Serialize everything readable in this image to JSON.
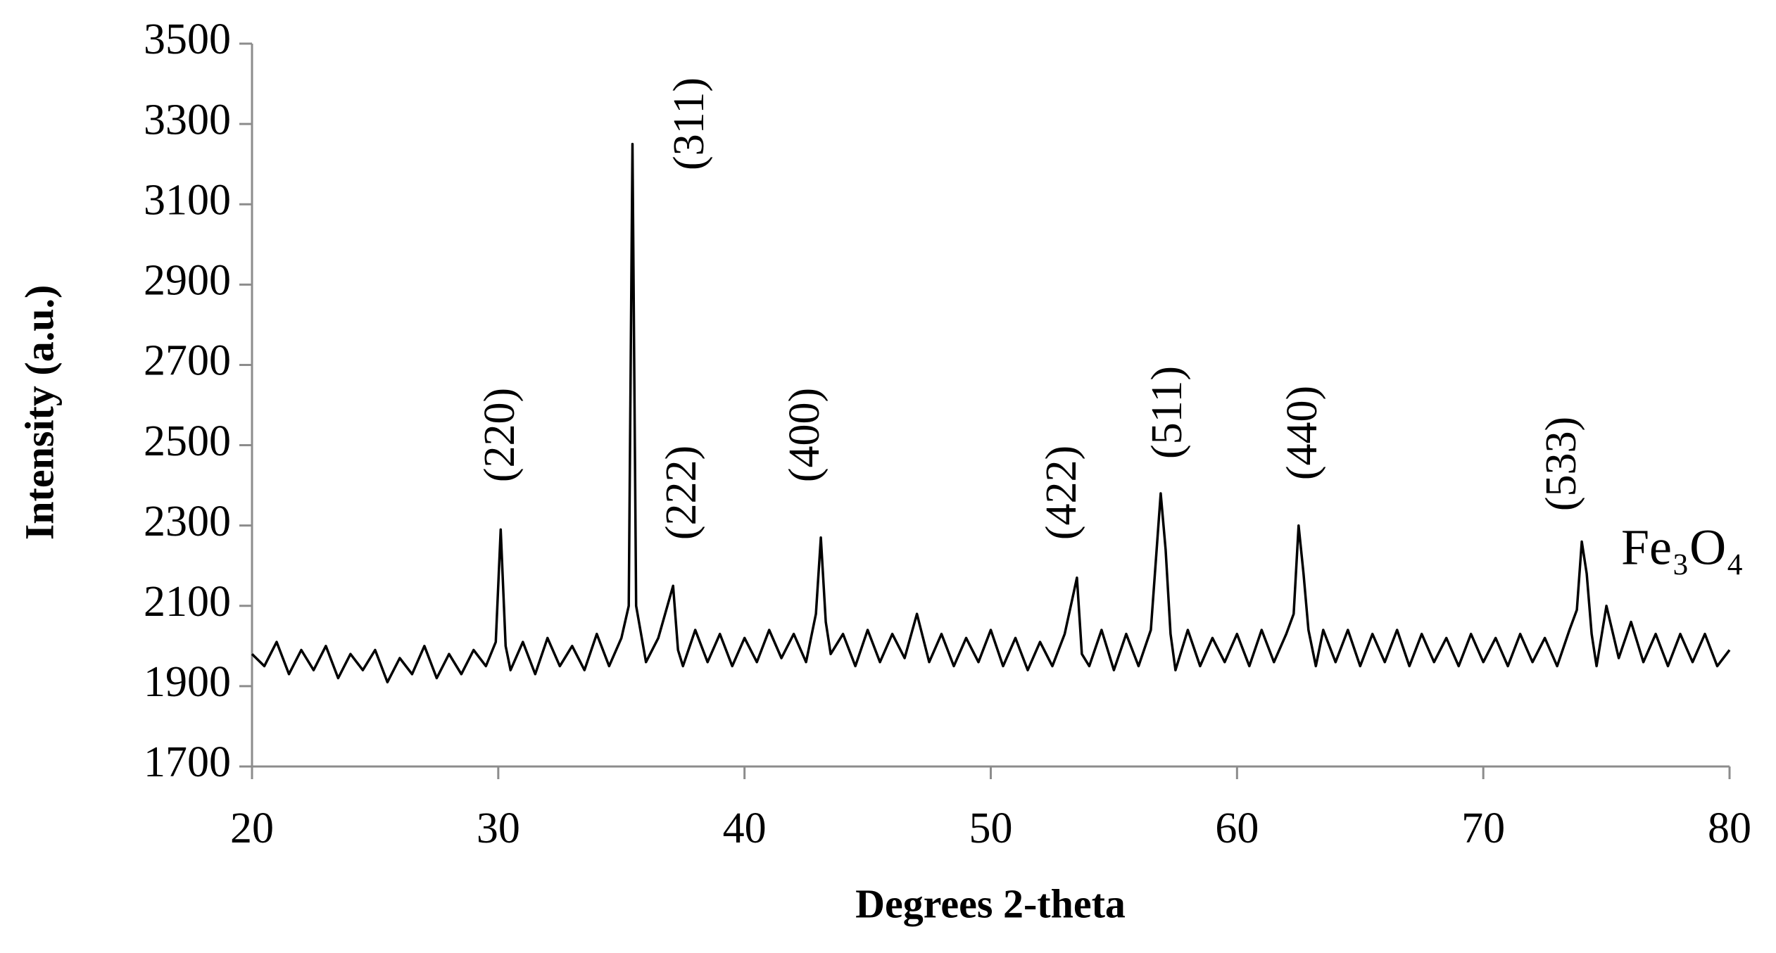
{
  "chart_data": {
    "type": "line",
    "xlabel": "Degrees 2-theta",
    "ylabel": "Intensity (a.u.)",
    "color": "#000000",
    "xlim": [
      20,
      80
    ],
    "xticks": [
      20,
      30,
      40,
      50,
      60,
      70,
      80
    ],
    "ylim": [
      1700,
      3500
    ],
    "yticks": [
      1700,
      1900,
      2100,
      2300,
      2500,
      2700,
      2900,
      3100,
      3300,
      3500
    ],
    "annotations": [
      "(220)",
      "(311)",
      "(222)",
      "(400)",
      "(422)",
      "(511)",
      "(440)",
      "(533)",
      "Fe₃O₄"
    ],
    "x": [
      20,
      20.5,
      21,
      21.5,
      22,
      22.5,
      23,
      23.5,
      24,
      24.5,
      25,
      25.5,
      26,
      26.5,
      27,
      27.5,
      28,
      28.5,
      29,
      29.5,
      29.9,
      30.1,
      30.3,
      30.5,
      31,
      31.5,
      32,
      32.5,
      33,
      33.5,
      34,
      34.5,
      35,
      35.3,
      35.45,
      35.6,
      35.8,
      36,
      36.5,
      37.1,
      37.3,
      37.5,
      38,
      38.5,
      39,
      39.5,
      40,
      40.5,
      41,
      41.5,
      42,
      42.5,
      42.9,
      43.1,
      43.3,
      43.5,
      44,
      44.5,
      45,
      45.5,
      46,
      46.5,
      47,
      47.5,
      48,
      48.5,
      49,
      49.5,
      50,
      50.5,
      51,
      51.5,
      52,
      52.5,
      53,
      53.5,
      53.7,
      54,
      54.5,
      55,
      55.5,
      56,
      56.5,
      56.9,
      57.1,
      57.3,
      57.5,
      58,
      58.5,
      59,
      59.5,
      60,
      60.5,
      61,
      61.5,
      62,
      62.3,
      62.5,
      62.7,
      62.9,
      63.2,
      63.5,
      64,
      64.5,
      65,
      65.5,
      66,
      66.5,
      67,
      67.5,
      68,
      68.5,
      69,
      69.5,
      70,
      70.5,
      71,
      71.5,
      72,
      72.5,
      73,
      73.5,
      73.8,
      74,
      74.2,
      74.4,
      74.6,
      75,
      75.5,
      76,
      76.5,
      77,
      77.5,
      78,
      78.5,
      79,
      79.5,
      80
    ],
    "values": [
      1980,
      1950,
      2010,
      1930,
      1990,
      1940,
      2000,
      1920,
      1980,
      1940,
      1990,
      1910,
      1970,
      1930,
      2000,
      1920,
      1980,
      1930,
      1990,
      1950,
      2010,
      2290,
      2000,
      1940,
      2010,
      1930,
      2020,
      1950,
      2000,
      1940,
      2030,
      1950,
      2020,
      2100,
      3250,
      2100,
      2030,
      1960,
      2020,
      2150,
      1990,
      1950,
      2040,
      1960,
      2030,
      1950,
      2020,
      1960,
      2040,
      1970,
      2030,
      1960,
      2080,
      2270,
      2060,
      1980,
      2030,
      1950,
      2040,
      1960,
      2030,
      1970,
      2080,
      1960,
      2030,
      1950,
      2020,
      1960,
      2040,
      1950,
      2020,
      1940,
      2010,
      1950,
      2030,
      2170,
      1980,
      1950,
      2040,
      1940,
      2030,
      1950,
      2040,
      2380,
      2240,
      2030,
      1940,
      2040,
      1950,
      2020,
      1960,
      2030,
      1950,
      2040,
      1960,
      2030,
      2080,
      2300,
      2180,
      2040,
      1950,
      2040,
      1960,
      2040,
      1950,
      2030,
      1960,
      2040,
      1950,
      2030,
      1960,
      2020,
      1950,
      2030,
      1960,
      2020,
      1950,
      2030,
      1960,
      2020,
      1950,
      2040,
      2090,
      2260,
      2180,
      2030,
      1950,
      2100,
      1970,
      2060,
      1960,
      2030,
      1950,
      2030,
      1960,
      2030,
      1950,
      1990
    ]
  }
}
